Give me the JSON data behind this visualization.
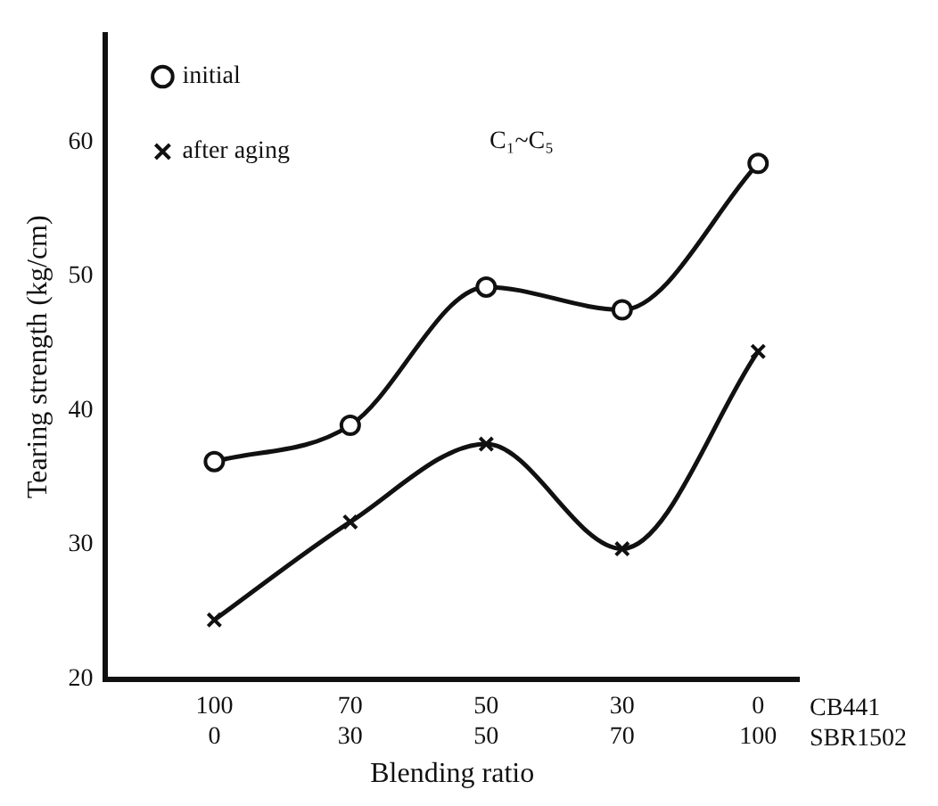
{
  "chart_data": {
    "type": "line",
    "xlabel": "Blending ratio",
    "ylabel": "Tearing strength (kg/cm)",
    "annotations": [
      "C₁~C₅",
      "CB441",
      "SBR1502"
    ],
    "categories": [
      "100\n0",
      "70\n30",
      "50\n50",
      "30\n70",
      "0\n100"
    ],
    "ylim": [
      20,
      68
    ],
    "yticks": [
      20,
      30,
      40,
      50,
      60
    ],
    "grid": false,
    "legend": "top left",
    "line_style": "solid",
    "series": [
      {
        "name": "initial",
        "color": "#111111",
        "marker": "circle",
        "values": [
          36.2,
          38.9,
          49.2,
          47.5,
          58.4
        ]
      },
      {
        "name": "after aging",
        "color": "#111111",
        "marker": "cross",
        "values": [
          24.4,
          31.7,
          37.5,
          29.7,
          44.4
        ]
      }
    ]
  }
}
